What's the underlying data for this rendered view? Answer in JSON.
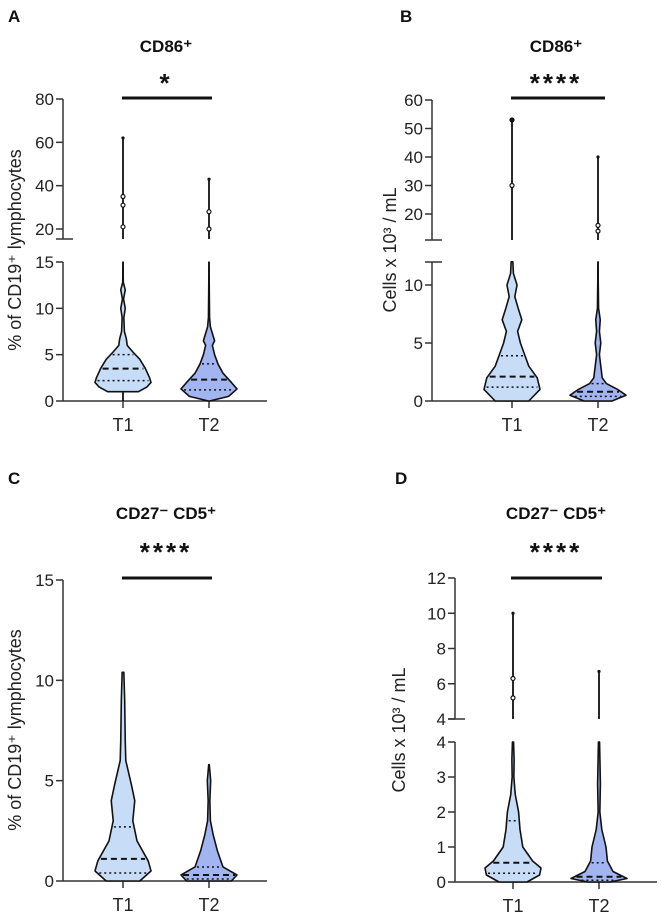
{
  "chart_data": [
    {
      "panel": "A",
      "type": "violin",
      "title": "CD86⁺",
      "ylabel": "% of CD19⁺ lymphocytes",
      "categories": [
        "T1",
        "T2"
      ],
      "significance": "*",
      "y_break": true,
      "yticks_lower": [
        0,
        5,
        10,
        15
      ],
      "yticks_upper": [
        20,
        40,
        60,
        80
      ],
      "series": [
        {
          "category": "T1",
          "color": "#c6dcf7",
          "q1": 2.2,
          "median": 3.5,
          "q3": 5.0,
          "density": [
            [
              1,
              0.55
            ],
            [
              1.5,
              0.85
            ],
            [
              2,
              1
            ],
            [
              2.5,
              0.95
            ],
            [
              3.5,
              0.8
            ],
            [
              4.5,
              0.6
            ],
            [
              5.3,
              0.35
            ],
            [
              6,
              0.15
            ],
            [
              6.7,
              0.12
            ],
            [
              7.5,
              0.05
            ],
            [
              9,
              0.03
            ],
            [
              10,
              0.08
            ],
            [
              11,
              0.02
            ],
            [
              12,
              0.08
            ],
            [
              12.8,
              0.01
            ],
            [
              15,
              0
            ]
          ],
          "outliers": [
            21,
            31,
            35
          ],
          "max": 62
        },
        {
          "category": "T2",
          "color": "#a3b5f0",
          "q1": 1.2,
          "median": 2.3,
          "q3": 4.0,
          "density": [
            [
              0,
              0.02
            ],
            [
              0.5,
              0.7
            ],
            [
              1.3,
              1
            ],
            [
              2,
              0.8
            ],
            [
              3,
              0.5
            ],
            [
              4,
              0.32
            ],
            [
              5,
              0.2
            ],
            [
              6,
              0.12
            ],
            [
              6.5,
              0.2
            ],
            [
              7,
              0.15
            ],
            [
              8,
              0.05
            ],
            [
              9,
              0.02
            ],
            [
              15,
              0
            ]
          ],
          "outliers": [
            20,
            28
          ],
          "max": 43
        }
      ]
    },
    {
      "panel": "B",
      "type": "violin",
      "title": "CD86⁺",
      "ylabel": "Cells x 10³ / mL",
      "categories": [
        "T1",
        "T2"
      ],
      "significance": "****",
      "y_break": true,
      "yticks_lower": [
        0,
        5,
        10
      ],
      "yticks_upper": [
        20,
        30,
        40,
        50,
        60
      ],
      "series": [
        {
          "category": "T1",
          "color": "#c6dcf7",
          "q1": 1.2,
          "median": 2.1,
          "q3": 3.9,
          "density": [
            [
              0,
              0.6
            ],
            [
              1,
              1
            ],
            [
              2,
              0.9
            ],
            [
              3,
              0.6
            ],
            [
              4,
              0.45
            ],
            [
              5,
              0.3
            ],
            [
              6,
              0.2
            ],
            [
              7,
              0.35
            ],
            [
              8,
              0.22
            ],
            [
              9,
              0.1
            ],
            [
              10,
              0.18
            ],
            [
              11,
              0.05
            ],
            [
              12,
              0.03
            ]
          ],
          "outliers": [
            30,
            53
          ],
          "max": 53
        },
        {
          "category": "T2",
          "color": "#a3b5f0",
          "q1": 0.4,
          "median": 0.8,
          "q3": 1.5,
          "density": [
            [
              0,
              0.5
            ],
            [
              0.5,
              1
            ],
            [
              1,
              0.7
            ],
            [
              1.5,
              0.3
            ],
            [
              2,
              0.15
            ],
            [
              3,
              0.1
            ],
            [
              4,
              0.05
            ],
            [
              5,
              0.1
            ],
            [
              6,
              0.05
            ],
            [
              7,
              0.08
            ],
            [
              8,
              0.02
            ],
            [
              12,
              0
            ]
          ],
          "outliers": [
            14,
            16
          ],
          "max": 40
        }
      ]
    },
    {
      "panel": "C",
      "type": "violin",
      "title": "CD27⁻ CD5⁺",
      "ylabel": "% of CD19⁺ lymphocytes",
      "categories": [
        "T1",
        "T2"
      ],
      "significance": "****",
      "y_break": false,
      "yticks_lower": [
        0,
        5,
        10,
        15
      ],
      "yticks_upper": [],
      "series": [
        {
          "category": "T1",
          "color": "#c6dcf7",
          "q1": 0.4,
          "median": 1.1,
          "q3": 2.7,
          "density": [
            [
              0,
              0.6
            ],
            [
              0.5,
              1
            ],
            [
              1,
              0.9
            ],
            [
              2,
              0.5
            ],
            [
              3,
              0.35
            ],
            [
              4,
              0.42
            ],
            [
              4.8,
              0.3
            ],
            [
              6,
              0.1
            ],
            [
              7,
              0.08
            ],
            [
              9,
              0.06
            ],
            [
              10.4,
              0.03
            ]
          ],
          "outliers": [],
          "max": null
        },
        {
          "category": "T2",
          "color": "#a3b5f0",
          "q1": 0.1,
          "median": 0.3,
          "q3": 0.7,
          "density": [
            [
              0,
              0.8
            ],
            [
              0.3,
              1
            ],
            [
              0.7,
              0.5
            ],
            [
              1.5,
              0.3
            ],
            [
              2.3,
              0.15
            ],
            [
              3,
              0.05
            ],
            [
              4,
              0.03
            ],
            [
              5,
              0.06
            ],
            [
              5.8,
              0.01
            ]
          ],
          "outliers": [],
          "max": null
        }
      ]
    },
    {
      "panel": "D",
      "type": "violin",
      "title": "CD27⁻ CD5⁺",
      "ylabel": "Cells x 10³ / mL",
      "categories": [
        "T1",
        "T2"
      ],
      "significance": "****",
      "y_break": true,
      "yticks_lower": [
        0,
        1,
        2,
        3,
        4
      ],
      "yticks_upper": [
        4,
        6,
        8,
        10,
        12
      ],
      "series": [
        {
          "category": "T1",
          "color": "#c6dcf7",
          "q1": 0.25,
          "median": 0.55,
          "q3": 1.75,
          "density": [
            [
              0,
              0.5
            ],
            [
              0.2,
              0.95
            ],
            [
              0.4,
              1
            ],
            [
              0.6,
              0.7
            ],
            [
              1,
              0.35
            ],
            [
              1.5,
              0.25
            ],
            [
              2,
              0.2
            ],
            [
              2.5,
              0.08
            ],
            [
              3,
              0.03
            ],
            [
              3.5,
              0.04
            ],
            [
              4,
              0.02
            ]
          ],
          "outliers": [
            5.2,
            6.3
          ],
          "max": 10
        },
        {
          "category": "T2",
          "color": "#a3b5f0",
          "q1": 0.05,
          "median": 0.15,
          "q3": 0.55,
          "density": [
            [
              0,
              0.4
            ],
            [
              0.1,
              1
            ],
            [
              0.3,
              0.5
            ],
            [
              0.6,
              0.3
            ],
            [
              1,
              0.25
            ],
            [
              1.5,
              0.1
            ],
            [
              2,
              0.03
            ],
            [
              2.8,
              0.05
            ],
            [
              4,
              0.02
            ]
          ],
          "outliers": [],
          "max": 6.7
        }
      ]
    }
  ]
}
